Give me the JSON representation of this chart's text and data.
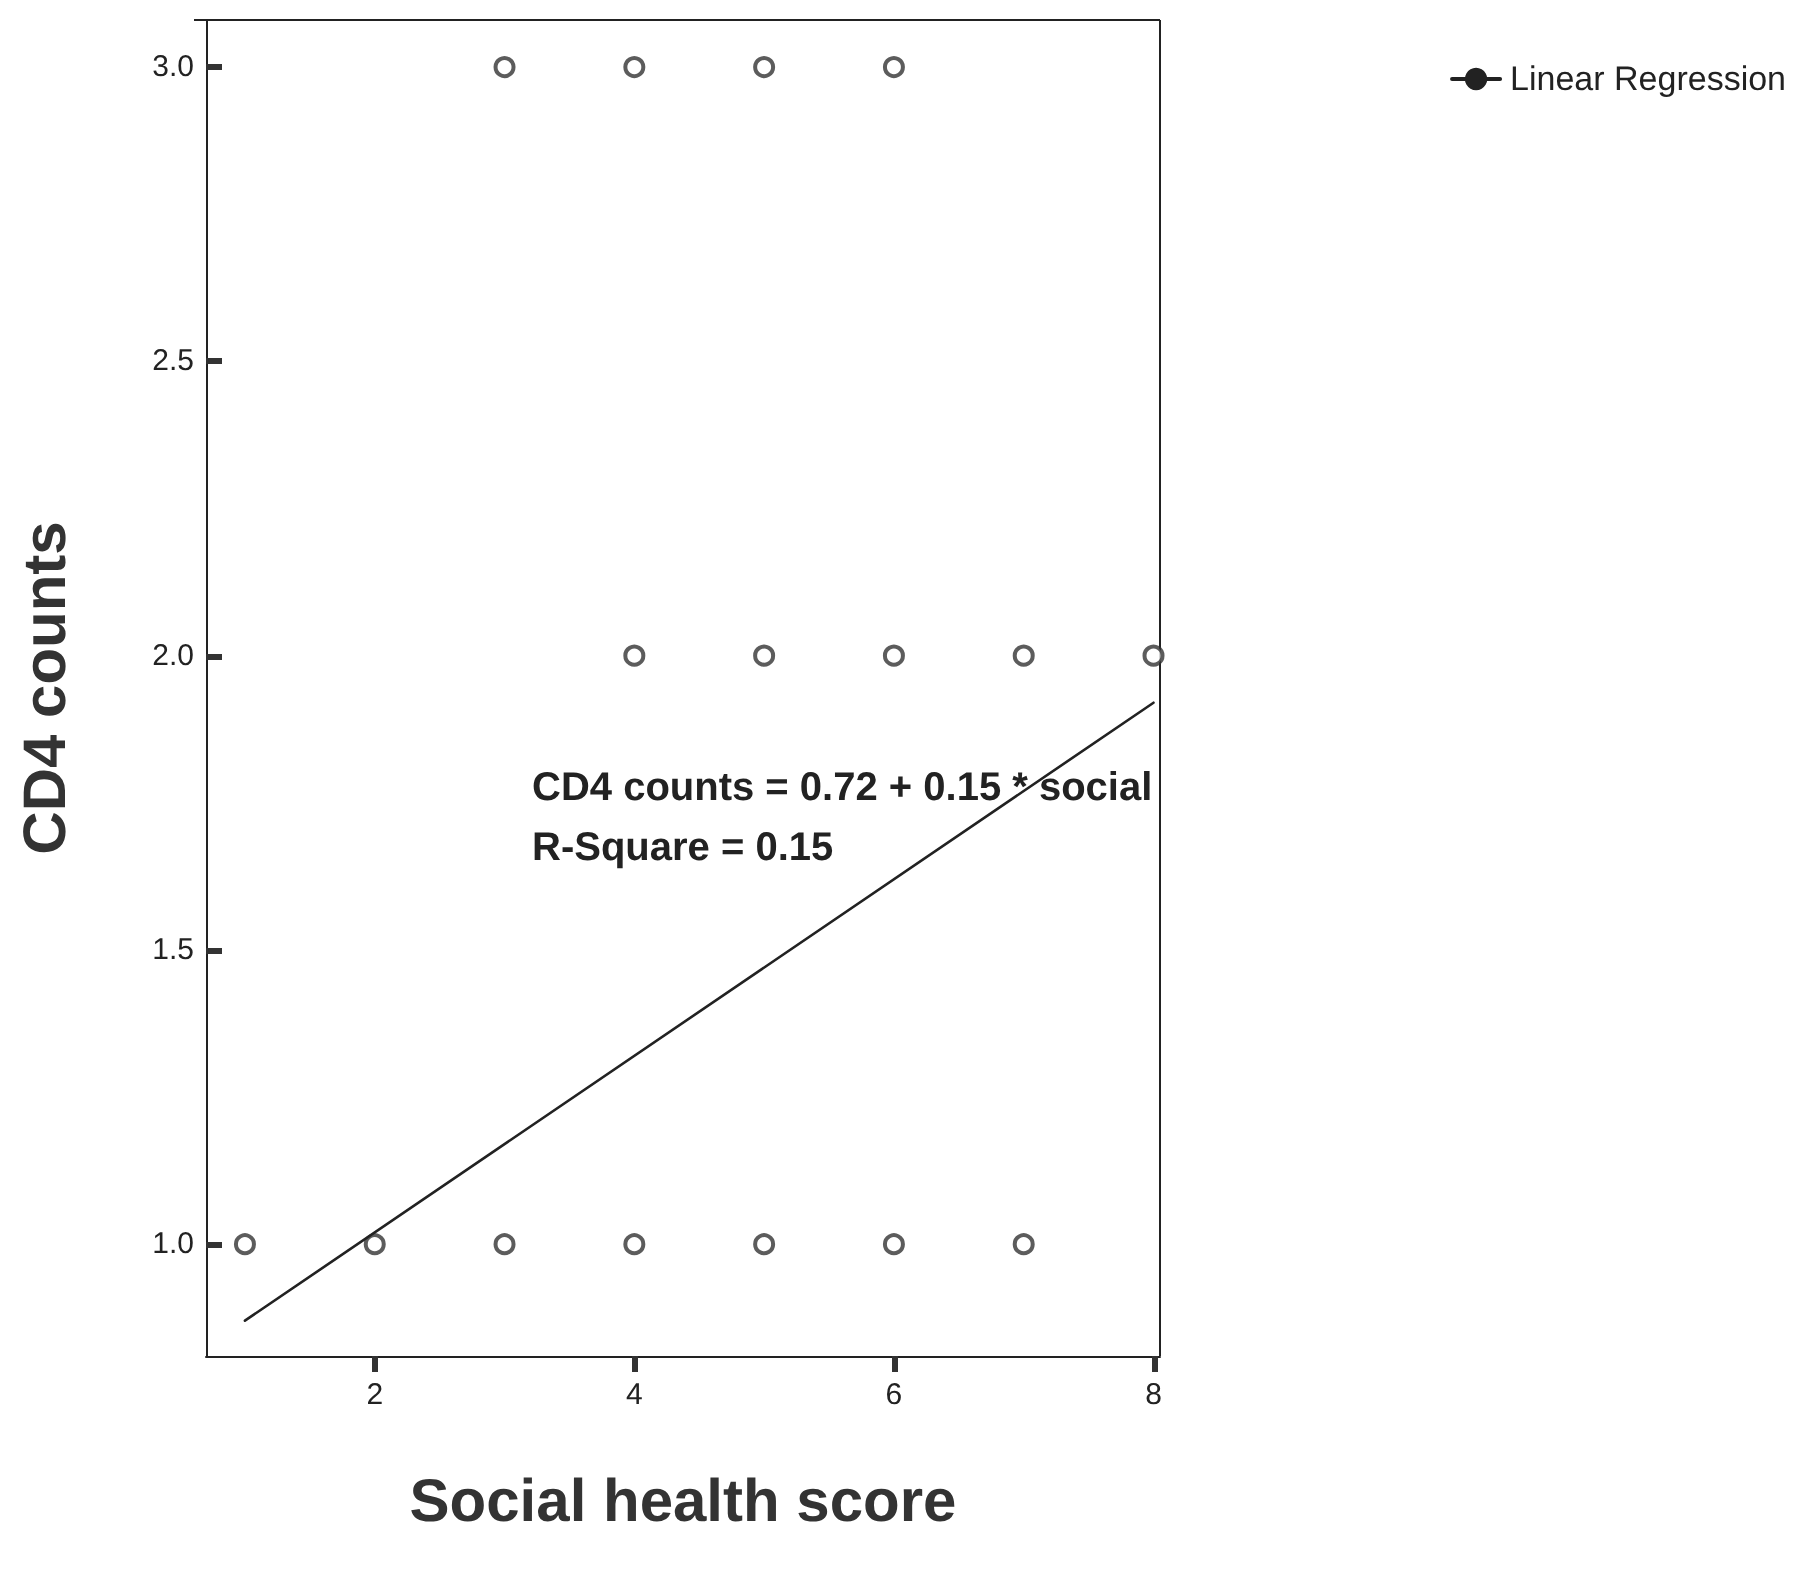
{
  "chart_data": {
    "type": "scatter",
    "xlabel": "Social health score",
    "ylabel": "CD4 counts",
    "xlim": [
      0.7,
      8.05
    ],
    "xticks": [
      2,
      4,
      6,
      8
    ],
    "ylim": [
      0.81,
      3.08
    ],
    "yticks": [
      {
        "value": 1,
        "label": "1.0"
      },
      {
        "value": 1.5,
        "label": "1.5"
      },
      {
        "value": 2,
        "label": "2.0"
      },
      {
        "value": 2.5,
        "label": "2.5"
      },
      {
        "value": 3,
        "label": "3.0"
      }
    ],
    "grid": false,
    "legend": "top right",
    "annotations": [
      "CD4 counts = 0.72 + 0.15 * social",
      "R-Square = 0.15"
    ],
    "series": [
      {
        "marker": "circle",
        "color": "#333333",
        "x": [
          3,
          4,
          5,
          6,
          4,
          5,
          6,
          7,
          8,
          1,
          2,
          3,
          4,
          5,
          6,
          7
        ],
        "values": [
          3,
          3,
          3,
          3,
          2,
          2,
          2,
          2,
          2,
          1,
          1,
          1,
          1,
          1,
          1,
          1
        ]
      },
      {
        "type": "line",
        "marker": "none",
        "name": "Linear Regression",
        "color": "#222222",
        "line_style": "solid",
        "x": [
          1,
          8
        ],
        "values": [
          0.87,
          1.92
        ]
      }
    ]
  }
}
